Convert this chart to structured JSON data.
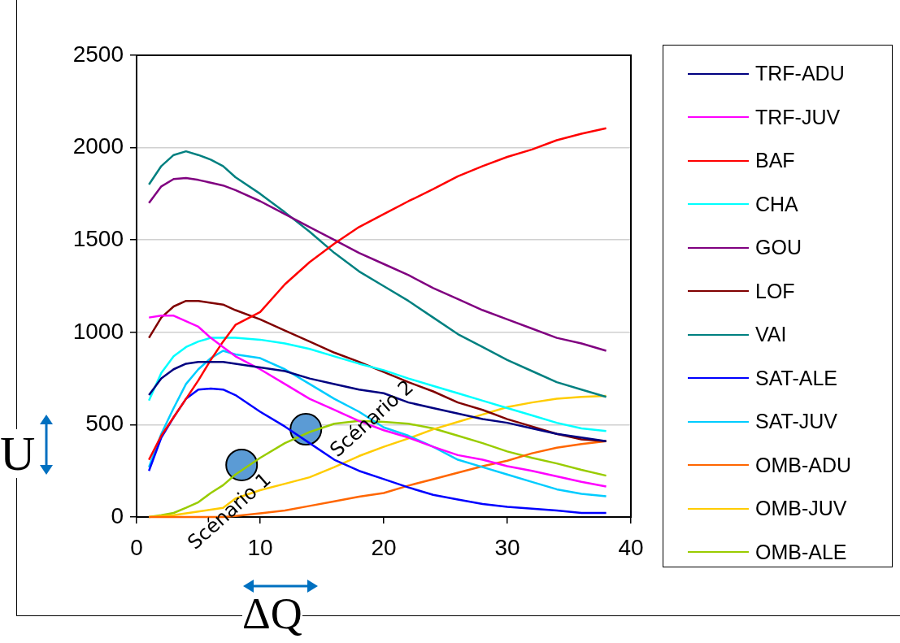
{
  "chart_data": {
    "type": "line",
    "xlabel": "ΔQ",
    "ylabel": "U",
    "x": [
      1,
      2,
      3,
      4,
      5,
      6,
      7,
      8,
      10,
      12,
      14,
      16,
      18,
      20,
      22,
      24,
      26,
      28,
      30,
      32,
      34,
      36,
      38
    ],
    "xlim": [
      0,
      40
    ],
    "xticks": [
      0,
      10,
      20,
      30,
      40
    ],
    "ylim": [
      0,
      2500
    ],
    "yticks": [
      0,
      500,
      1000,
      1500,
      2000,
      2500
    ],
    "grid": "y",
    "legend": "right",
    "marker": "none",
    "line_style": "solid",
    "series": [
      {
        "name": "TRF-ADU",
        "color": "#000080",
        "values": [
          660,
          750,
          800,
          830,
          840,
          840,
          840,
          830,
          810,
          790,
          750,
          720,
          690,
          670,
          620,
          590,
          560,
          530,
          510,
          480,
          450,
          430,
          410
        ]
      },
      {
        "name": "TRF-JUV",
        "color": "#ff00ff",
        "values": [
          1080,
          1090,
          1090,
          1060,
          1030,
          970,
          920,
          870,
          800,
          720,
          640,
          580,
          520,
          470,
          430,
          380,
          335,
          310,
          275,
          250,
          220,
          190,
          165
        ]
      },
      {
        "name": "BAF",
        "color": "#ff0000",
        "values": [
          310,
          440,
          540,
          640,
          740,
          850,
          950,
          1040,
          1110,
          1260,
          1380,
          1480,
          1570,
          1640,
          1710,
          1775,
          1845,
          1900,
          1950,
          1990,
          2040,
          2075,
          2105
        ]
      },
      {
        "name": "CHA",
        "color": "#00ffff",
        "values": [
          630,
          780,
          870,
          920,
          950,
          970,
          970,
          970,
          960,
          940,
          910,
          870,
          830,
          795,
          750,
          710,
          670,
          630,
          590,
          550,
          510,
          480,
          465
        ]
      },
      {
        "name": "GOU",
        "color": "#800080",
        "values": [
          1700,
          1790,
          1830,
          1835,
          1825,
          1810,
          1795,
          1770,
          1710,
          1640,
          1570,
          1500,
          1430,
          1370,
          1310,
          1240,
          1180,
          1120,
          1070,
          1020,
          970,
          940,
          900
        ]
      },
      {
        "name": "LOF",
        "color": "#800000",
        "values": [
          970,
          1080,
          1140,
          1170,
          1170,
          1160,
          1150,
          1120,
          1070,
          1010,
          950,
          890,
          840,
          785,
          730,
          680,
          620,
          580,
          530,
          490,
          450,
          420,
          410
        ]
      },
      {
        "name": "VAI",
        "color": "#008080",
        "values": [
          1800,
          1900,
          1960,
          1980,
          1960,
          1935,
          1900,
          1840,
          1750,
          1650,
          1545,
          1430,
          1330,
          1250,
          1170,
          1080,
          990,
          920,
          850,
          790,
          730,
          690,
          650
        ]
      },
      {
        "name": "SAT-ALE",
        "color": "#0000ff",
        "values": [
          250,
          430,
          540,
          640,
          690,
          695,
          690,
          660,
          570,
          490,
          400,
          310,
          250,
          205,
          160,
          120,
          95,
          70,
          55,
          45,
          35,
          22,
          22
        ]
      },
      {
        "name": "SAT-JUV",
        "color": "#00ccff",
        "values": [
          270,
          450,
          590,
          720,
          800,
          860,
          900,
          880,
          860,
          800,
          720,
          640,
          570,
          485,
          440,
          380,
          310,
          270,
          230,
          190,
          150,
          125,
          112
        ]
      },
      {
        "name": "OMB-ADU",
        "color": "#ff6600",
        "values": [
          0,
          0,
          0,
          0,
          0,
          0,
          0,
          5,
          20,
          35,
          60,
          85,
          110,
          130,
          170,
          205,
          240,
          275,
          305,
          345,
          375,
          395,
          410
        ]
      },
      {
        "name": "OMB-JUV",
        "color": "#ffcc00",
        "values": [
          0,
          5,
          10,
          20,
          30,
          40,
          50,
          100,
          145,
          180,
          215,
          270,
          330,
          380,
          425,
          475,
          515,
          555,
          595,
          620,
          640,
          650,
          656
        ]
      },
      {
        "name": "OMB-ALE",
        "color": "#99cc00",
        "values": [
          0,
          10,
          22,
          50,
          80,
          130,
          172,
          230,
          320,
          400,
          460,
          505,
          520,
          515,
          505,
          480,
          440,
          400,
          355,
          320,
          290,
          255,
          224
        ]
      }
    ],
    "annotations": [
      {
        "text": "Scénario 1",
        "x": 8.5,
        "y": 282
      },
      {
        "text": "Scénario 2",
        "x": 13.7,
        "y": 475
      }
    ]
  }
}
